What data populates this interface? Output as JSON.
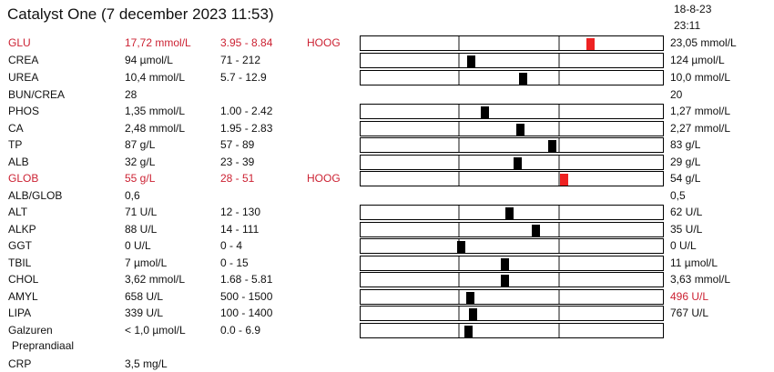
{
  "header": {
    "title": "Catalyst One (7 december 2023 11:53)",
    "prev_date": "18-8-23",
    "prev_time": "23:11"
  },
  "colors": {
    "alert": "#cc2233",
    "marker": "#000000",
    "marker_alert": "#ee2222",
    "gridline": "#888888"
  },
  "rows": [
    {
      "name": "GLU",
      "value": "17,72 mmol/L",
      "range": "3.95 - 8.84",
      "flag": "HOOG",
      "prev": "23,05 mmol/L",
      "alert": true,
      "prev_alert": false,
      "marker": 0.755
    },
    {
      "name": "CREA",
      "value": "94 µmol/L",
      "range": "71 - 212",
      "flag": "",
      "prev": "124 µmol/L",
      "alert": false,
      "prev_alert": false,
      "marker": 0.365
    },
    {
      "name": "UREA",
      "value": "10,4 mmol/L",
      "range": "5.7 - 12.9",
      "flag": "",
      "prev": "10,0 mmol/L",
      "alert": false,
      "prev_alert": false,
      "marker": 0.535
    },
    {
      "name": "BUN/CREA",
      "value": "28",
      "range": "",
      "flag": "",
      "prev": "20",
      "alert": false,
      "prev_alert": false,
      "marker": null
    },
    {
      "name": "PHOS",
      "value": "1,35 mmol/L",
      "range": "1.00 - 2.42",
      "flag": "",
      "prev": "1,27 mmol/L",
      "alert": false,
      "prev_alert": false,
      "marker": 0.41
    },
    {
      "name": "CA",
      "value": "2,48 mmol/L",
      "range": "1.95 - 2.83",
      "flag": "",
      "prev": "2,27 mmol/L",
      "alert": false,
      "prev_alert": false,
      "marker": 0.525
    },
    {
      "name": "TP",
      "value": "87 g/L",
      "range": "57 - 89",
      "flag": "",
      "prev": "83 g/L",
      "alert": false,
      "prev_alert": false,
      "marker": 0.63
    },
    {
      "name": "ALB",
      "value": "32 g/L",
      "range": "23 - 39",
      "flag": "",
      "prev": "29 g/L",
      "alert": false,
      "prev_alert": false,
      "marker": 0.515
    },
    {
      "name": "GLOB",
      "value": "55 g/L",
      "range": "28 - 51",
      "flag": "HOOG",
      "prev": "54 g/L",
      "alert": true,
      "prev_alert": false,
      "marker": 0.67
    },
    {
      "name": "ALB/GLOB",
      "value": "0,6",
      "range": "",
      "flag": "",
      "prev": "0,5",
      "alert": false,
      "prev_alert": false,
      "marker": null
    },
    {
      "name": "ALT",
      "value": "71 U/L",
      "range": "12 - 130",
      "flag": "",
      "prev": "62 U/L",
      "alert": false,
      "prev_alert": false,
      "marker": 0.49
    },
    {
      "name": "ALKP",
      "value": "88 U/L",
      "range": "14 - 111",
      "flag": "",
      "prev": "35 U/L",
      "alert": false,
      "prev_alert": false,
      "marker": 0.575
    },
    {
      "name": "GGT",
      "value": "0 U/L",
      "range": "0 - 4",
      "flag": "",
      "prev": "0 U/L",
      "alert": false,
      "prev_alert": false,
      "marker": 0.33
    },
    {
      "name": "TBIL",
      "value": "7 µmol/L",
      "range": "0 - 15",
      "flag": "",
      "prev": "11 µmol/L",
      "alert": false,
      "prev_alert": false,
      "marker": 0.475
    },
    {
      "name": "CHOL",
      "value": "3,62 mmol/L",
      "range": "1.68 - 5.81",
      "flag": "",
      "prev": "3,63 mmol/L",
      "alert": false,
      "prev_alert": false,
      "marker": 0.475
    },
    {
      "name": "AMYL",
      "value": "658 U/L",
      "range": "500 - 1500",
      "flag": "",
      "prev": "496 U/L",
      "alert": false,
      "prev_alert": true,
      "marker": 0.36
    },
    {
      "name": "LIPA",
      "value": "339 U/L",
      "range": "100 - 1400",
      "flag": "",
      "prev": "767 U/L",
      "alert": false,
      "prev_alert": false,
      "marker": 0.37
    },
    {
      "name": "Galzuren",
      "value": "< 1,0 µmol/L",
      "range": "0.0 - 6.9",
      "flag": "",
      "prev": "",
      "alert": false,
      "prev_alert": false,
      "marker": 0.355
    },
    {
      "name": "CRP",
      "value": "3,5 mg/L",
      "range": "",
      "flag": "",
      "prev": "",
      "alert": false,
      "prev_alert": false,
      "marker": null
    }
  ],
  "sub_label": "Preprandiaal"
}
